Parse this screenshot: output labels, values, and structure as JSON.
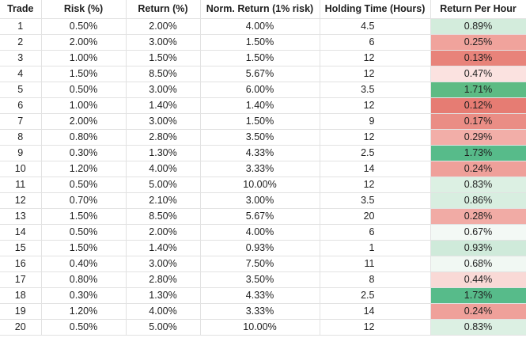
{
  "columns": [
    "Trade",
    "Risk (%)",
    "Return (%)",
    "Norm. Return (1% risk)",
    "Holding Time (Hours)",
    "Return Per Hour"
  ],
  "rows": [
    {
      "trade": "1",
      "risk": "0.50%",
      "ret": "2.00%",
      "norm": "4.00%",
      "hold": "4.5",
      "rph": "0.89%",
      "rph_color": "#d3ecdc"
    },
    {
      "trade": "2",
      "risk": "2.00%",
      "ret": "3.00%",
      "norm": "1.50%",
      "hold": "6",
      "rph": "0.25%",
      "rph_color": "#f0a39c"
    },
    {
      "trade": "3",
      "risk": "1.00%",
      "ret": "1.50%",
      "norm": "1.50%",
      "hold": "12",
      "rph": "0.13%",
      "rph_color": "#e8837a"
    },
    {
      "trade": "4",
      "risk": "1.50%",
      "ret": "8.50%",
      "norm": "5.67%",
      "hold": "12",
      "rph": "0.47%",
      "rph_color": "#fbe2e0"
    },
    {
      "trade": "5",
      "risk": "0.50%",
      "ret": "3.00%",
      "norm": "6.00%",
      "hold": "3.5",
      "rph": "1.71%",
      "rph_color": "#5dbb84"
    },
    {
      "trade": "6",
      "risk": "1.00%",
      "ret": "1.40%",
      "norm": "1.40%",
      "hold": "12",
      "rph": "0.12%",
      "rph_color": "#e67c73"
    },
    {
      "trade": "7",
      "risk": "2.00%",
      "ret": "3.00%",
      "norm": "1.50%",
      "hold": "9",
      "rph": "0.17%",
      "rph_color": "#ea8d85"
    },
    {
      "trade": "8",
      "risk": "0.80%",
      "ret": "2.80%",
      "norm": "3.50%",
      "hold": "12",
      "rph": "0.29%",
      "rph_color": "#f2aea8"
    },
    {
      "trade": "9",
      "risk": "0.30%",
      "ret": "1.30%",
      "norm": "4.33%",
      "hold": "2.5",
      "rph": "1.73%",
      "rph_color": "#57bb8a"
    },
    {
      "trade": "10",
      "risk": "1.20%",
      "ret": "4.00%",
      "norm": "3.33%",
      "hold": "14",
      "rph": "0.24%",
      "rph_color": "#efa09a"
    },
    {
      "trade": "11",
      "risk": "0.50%",
      "ret": "5.00%",
      "norm": "10.00%",
      "hold": "12",
      "rph": "0.83%",
      "rph_color": "#dcf0e3"
    },
    {
      "trade": "12",
      "risk": "0.70%",
      "ret": "2.10%",
      "norm": "3.00%",
      "hold": "3.5",
      "rph": "0.86%",
      "rph_color": "#d8eee0"
    },
    {
      "trade": "13",
      "risk": "1.50%",
      "ret": "8.50%",
      "norm": "5.67%",
      "hold": "20",
      "rph": "0.28%",
      "rph_color": "#f1aba5"
    },
    {
      "trade": "14",
      "risk": "0.50%",
      "ret": "2.00%",
      "norm": "4.00%",
      "hold": "6",
      "rph": "0.67%",
      "rph_color": "#f3f9f5"
    },
    {
      "trade": "15",
      "risk": "1.50%",
      "ret": "1.40%",
      "norm": "0.93%",
      "hold": "1",
      "rph": "0.93%",
      "rph_color": "#cfeada"
    },
    {
      "trade": "16",
      "risk": "0.40%",
      "ret": "3.00%",
      "norm": "7.50%",
      "hold": "11",
      "rph": "0.68%",
      "rph_color": "#f1f8f3"
    },
    {
      "trade": "17",
      "risk": "0.80%",
      "ret": "2.80%",
      "norm": "3.50%",
      "hold": "8",
      "rph": "0.44%",
      "rph_color": "#f9d9d6"
    },
    {
      "trade": "18",
      "risk": "0.30%",
      "ret": "1.30%",
      "norm": "4.33%",
      "hold": "2.5",
      "rph": "1.73%",
      "rph_color": "#57bb8a"
    },
    {
      "trade": "19",
      "risk": "1.20%",
      "ret": "4.00%",
      "norm": "3.33%",
      "hold": "14",
      "rph": "0.24%",
      "rph_color": "#efa09a"
    },
    {
      "trade": "20",
      "risk": "0.50%",
      "ret": "5.00%",
      "norm": "10.00%",
      "hold": "12",
      "rph": "0.83%",
      "rph_color": "#dcf0e3"
    }
  ]
}
